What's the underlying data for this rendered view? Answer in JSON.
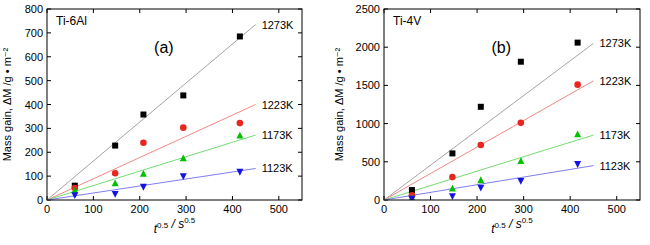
{
  "chart_data": [
    {
      "type": "scatter",
      "title": "Ti-6Al",
      "subtitle": "(a)",
      "x_label": "t0.5 / s0.5",
      "y_label": "Mass gain, ΔM /g • m⁻²",
      "x": [
        60,
        147,
        208,
        294,
        416
      ],
      "xlim": [
        0,
        550
      ],
      "xticks": [
        0,
        100,
        200,
        300,
        400,
        500
      ],
      "ylim": [
        0,
        800
      ],
      "yticks": [
        0,
        100,
        200,
        300,
        400,
        500,
        600,
        700,
        800
      ],
      "series": [
        {
          "name": "1273K",
          "color": "#000000",
          "marker": "square",
          "values": [
            60,
            228,
            358,
            438,
            685
          ],
          "fit_x": [
            0,
            450
          ],
          "fit_values": [
            0,
            735
          ]
        },
        {
          "name": "1223K",
          "color": "#e8261f",
          "marker": "circle",
          "values": [
            50,
            112,
            240,
            303,
            322
          ],
          "fit_x": [
            0,
            450
          ],
          "fit_values": [
            0,
            400
          ]
        },
        {
          "name": "1173K",
          "color": "#00c000",
          "marker": "triangle-up",
          "values": [
            40,
            70,
            110,
            175,
            270
          ],
          "fit_x": [
            0,
            450
          ],
          "fit_values": [
            0,
            272
          ]
        },
        {
          "name": "1123K",
          "color": "#1414e0",
          "marker": "triangle-down",
          "values": [
            20,
            25,
            55,
            100,
            118
          ],
          "fit_x": [
            0,
            450
          ],
          "fit_values": [
            0,
            132
          ]
        }
      ]
    },
    {
      "type": "scatter",
      "title": "Ti-4V",
      "subtitle": "(b)",
      "x_label": "t0.5 / s0.5",
      "y_label": "Mass gain, ΔM /g • m⁻²",
      "x": [
        60,
        147,
        208,
        294,
        416
      ],
      "xlim": [
        0,
        550
      ],
      "xticks": [
        0,
        100,
        200,
        300,
        400,
        500
      ],
      "ylim": [
        0,
        2500
      ],
      "yticks": [
        0,
        500,
        1000,
        1500,
        2000,
        2500
      ],
      "series": [
        {
          "name": "1273K",
          "color": "#000000",
          "marker": "square",
          "values": [
            130,
            610,
            1220,
            1810,
            2060
          ],
          "fit_x": [
            0,
            450
          ],
          "fit_values": [
            0,
            2050
          ]
        },
        {
          "name": "1223K",
          "color": "#e8261f",
          "marker": "circle",
          "values": [
            60,
            300,
            720,
            1010,
            1510
          ],
          "fit_x": [
            0,
            450
          ],
          "fit_values": [
            0,
            1560
          ]
        },
        {
          "name": "1173K",
          "color": "#00c000",
          "marker": "triangle-up",
          "values": [
            30,
            150,
            260,
            510,
            860
          ],
          "fit_x": [
            0,
            450
          ],
          "fit_values": [
            0,
            850
          ]
        },
        {
          "name": "1123K",
          "color": "#1414e0",
          "marker": "triangle-down",
          "values": [
            15,
            50,
            160,
            250,
            470
          ],
          "fit_x": [
            0,
            450
          ],
          "fit_values": [
            0,
            450
          ]
        }
      ]
    }
  ]
}
